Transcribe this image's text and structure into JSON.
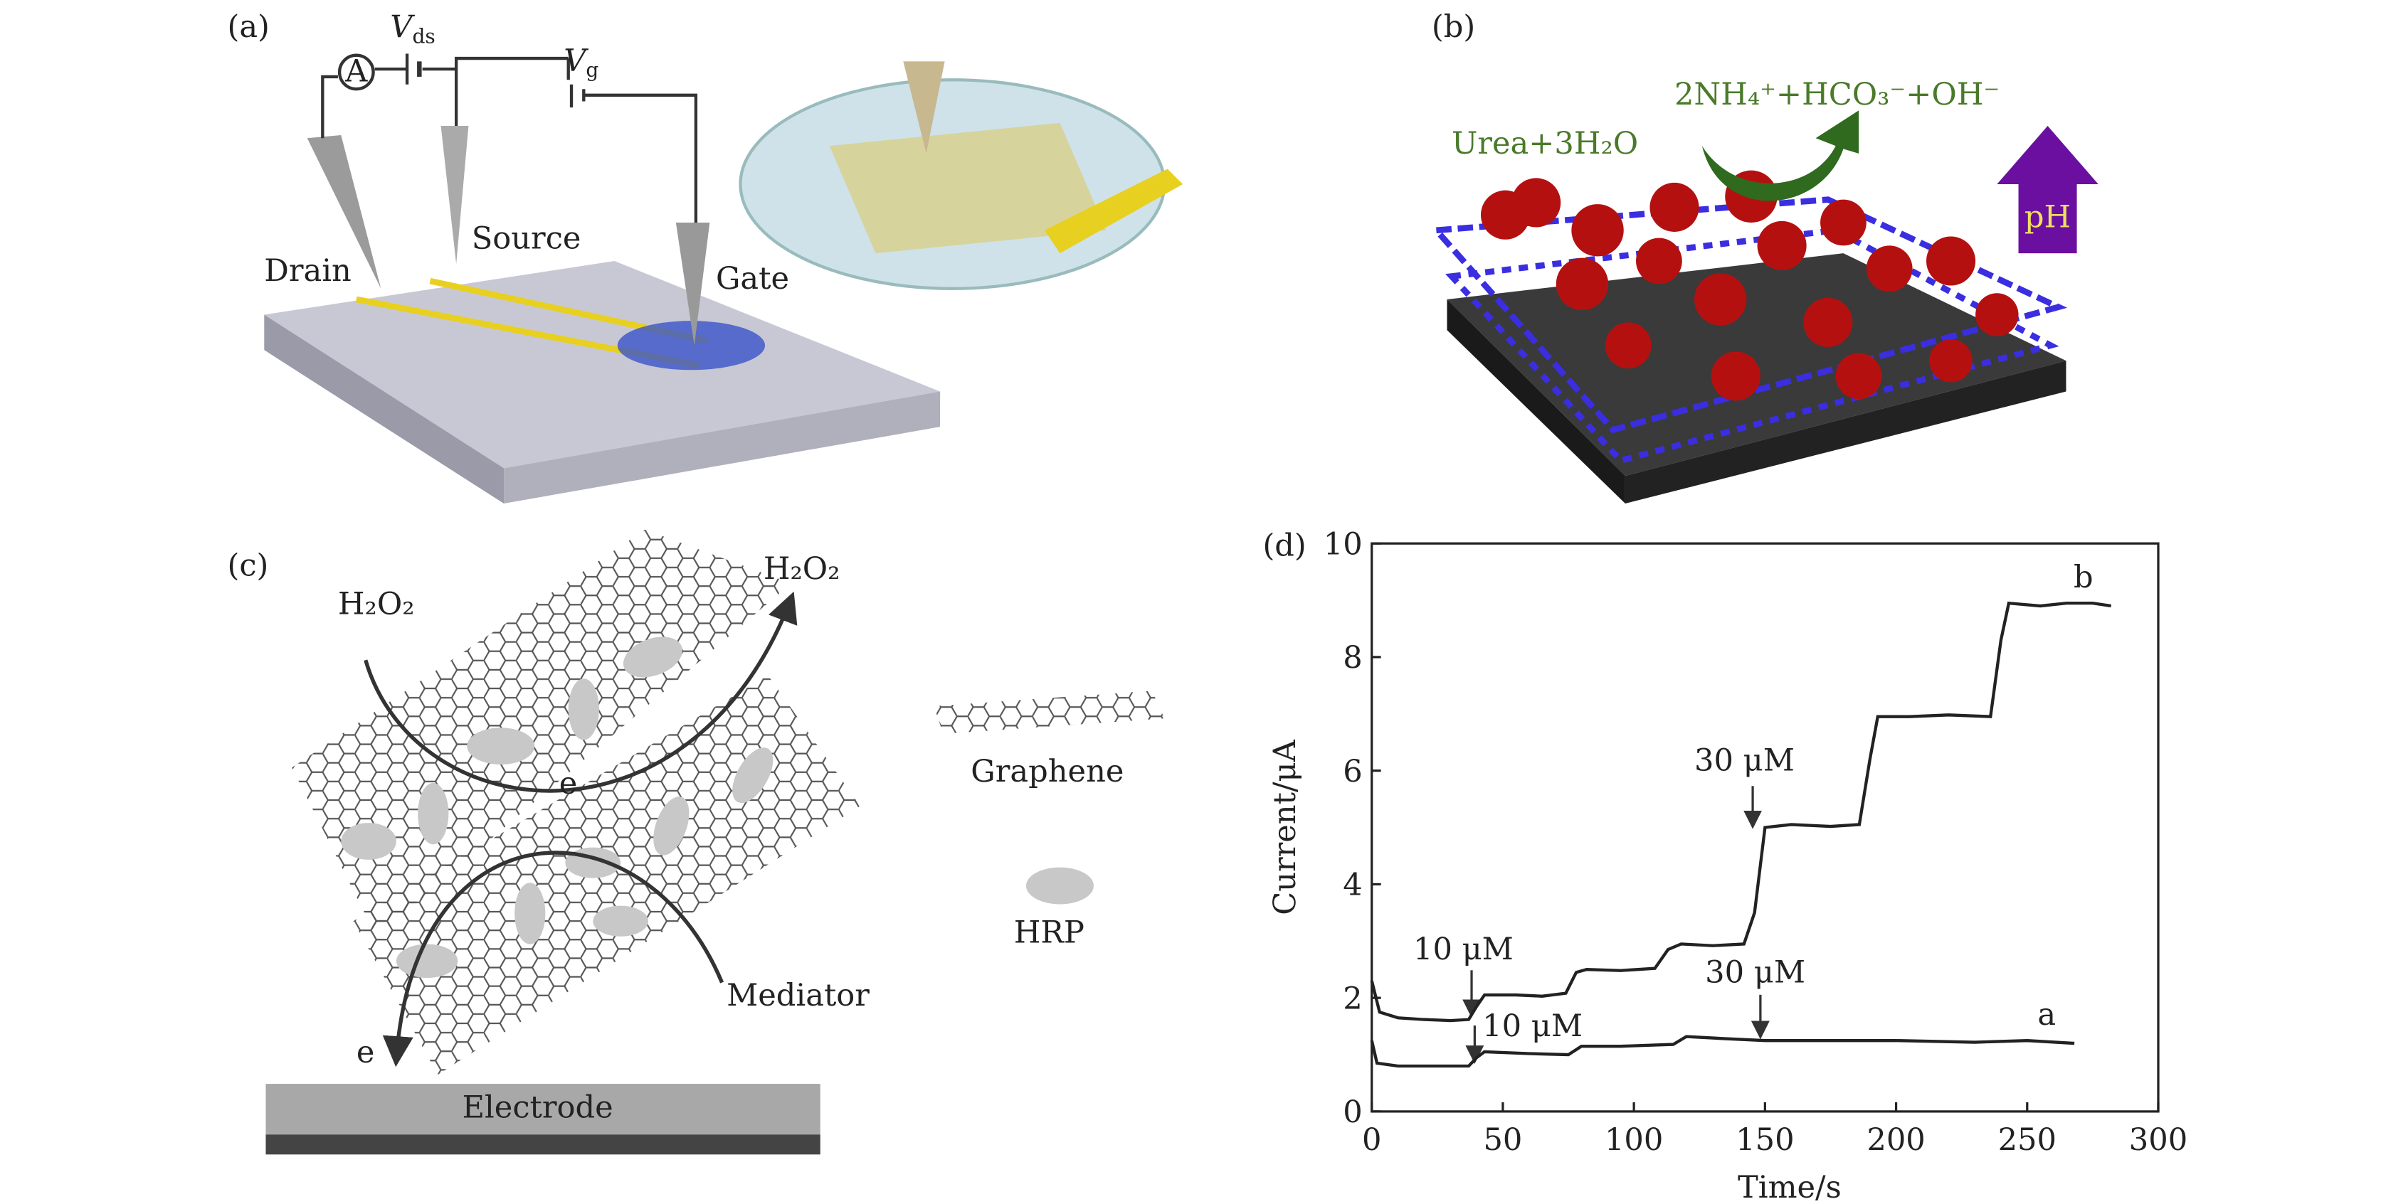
{
  "panel_a": {
    "label": "(a)",
    "ammeter": "A",
    "vds": {
      "symbol": "V",
      "subscript": "ds"
    },
    "vg": {
      "symbol": "V",
      "subscript": "g"
    },
    "drain": "Drain",
    "source": "Source",
    "gate": "Gate"
  },
  "panel_b": {
    "label": "(b)",
    "reactant": "Urea+3H₂O",
    "products": "2NH₄⁺+HCO₃⁻+OH⁻",
    "ph": "pH"
  },
  "panel_c": {
    "label": "(c)",
    "h2o2_in": "H₂O₂",
    "h2o2_out": "H₂O₂",
    "e_top": "e",
    "e_bottom": "e",
    "graphene": "Graphene",
    "hrp": "HRP",
    "mediator": "Mediator",
    "electrode": "Electrode"
  },
  "chart_data": {
    "type": "line",
    "panel_label": "(d)",
    "xlabel": "Time/s",
    "ylabel": "Current/μA",
    "xlim": [
      0,
      300
    ],
    "ylim": [
      0,
      10
    ],
    "xticks": [
      0,
      50,
      100,
      150,
      200,
      250,
      300
    ],
    "yticks": [
      0,
      2,
      4,
      6,
      8,
      10
    ],
    "series": [
      {
        "name": "a",
        "color": "#222222",
        "x": [
          0,
          2,
          10,
          25,
          37,
          40,
          43,
          60,
          75,
          80,
          95,
          115,
          120,
          135,
          150,
          170,
          200,
          230,
          250,
          268
        ],
        "values": [
          1.25,
          0.85,
          0.8,
          0.8,
          0.8,
          0.95,
          1.05,
          1.02,
          1.0,
          1.15,
          1.15,
          1.18,
          1.32,
          1.28,
          1.25,
          1.25,
          1.25,
          1.22,
          1.25,
          1.2
        ]
      },
      {
        "name": "b",
        "color": "#222222",
        "x": [
          0,
          3,
          10,
          20,
          30,
          37,
          40,
          43,
          55,
          65,
          74,
          78,
          82,
          95,
          108,
          113,
          118,
          130,
          142,
          146,
          150,
          160,
          175,
          186,
          190,
          193,
          205,
          220,
          236,
          240,
          243,
          255,
          265,
          275,
          282
        ],
        "values": [
          2.3,
          1.75,
          1.65,
          1.62,
          1.6,
          1.62,
          1.85,
          2.05,
          2.05,
          2.03,
          2.08,
          2.45,
          2.5,
          2.48,
          2.52,
          2.85,
          2.95,
          2.92,
          2.95,
          3.5,
          5.0,
          5.05,
          5.02,
          5.05,
          6.2,
          6.95,
          6.95,
          6.98,
          6.95,
          8.3,
          8.95,
          8.9,
          8.95,
          8.95,
          8.9
        ]
      }
    ],
    "annotations": [
      "10 μM",
      "30 μM",
      "10 μM",
      "30 μM"
    ]
  }
}
